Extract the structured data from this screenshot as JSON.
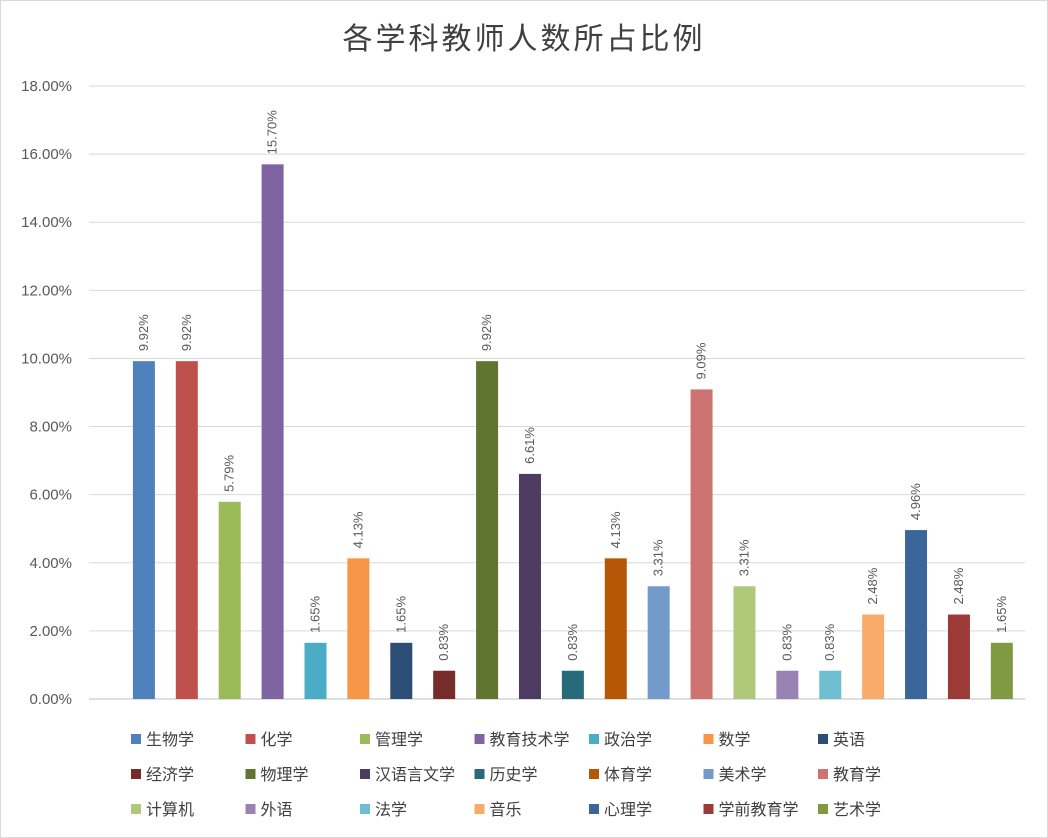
{
  "chart_data": {
    "type": "bar",
    "title": "各学科教师人数所占比例",
    "xlabel": "",
    "ylabel": "",
    "ylim": [
      0,
      18
    ],
    "y_ticks": [
      "0.00%",
      "2.00%",
      "4.00%",
      "6.00%",
      "8.00%",
      "10.00%",
      "12.00%",
      "14.00%",
      "16.00%",
      "18.00%"
    ],
    "grid": true,
    "legend_position": "bottom",
    "series": [
      {
        "name": "生物学",
        "value": 9.92,
        "label": "9.92%",
        "color": "#4f81bd"
      },
      {
        "name": "化学",
        "value": 9.92,
        "label": "9.92%",
        "color": "#c0504d"
      },
      {
        "name": "管理学",
        "value": 5.79,
        "label": "5.79%",
        "color": "#9bbb59"
      },
      {
        "name": "教育技术学",
        "value": 15.7,
        "label": "15.70%",
        "color": "#8064a2"
      },
      {
        "name": "政治学",
        "value": 1.65,
        "label": "1.65%",
        "color": "#4bacc6"
      },
      {
        "name": "数学",
        "value": 4.13,
        "label": "4.13%",
        "color": "#f79646"
      },
      {
        "name": "英语",
        "value": 1.65,
        "label": "1.65%",
        "color": "#2c4d75"
      },
      {
        "name": "经济学",
        "value": 0.83,
        "label": "0.83%",
        "color": "#772c2a"
      },
      {
        "name": "物理学",
        "value": 9.92,
        "label": "9.92%",
        "color": "#5f7530"
      },
      {
        "name": "汉语言文学",
        "value": 6.61,
        "label": "6.61%",
        "color": "#4d3b62"
      },
      {
        "name": "历史学",
        "value": 0.83,
        "label": "0.83%",
        "color": "#276a7c"
      },
      {
        "name": "体育学",
        "value": 4.13,
        "label": "4.13%",
        "color": "#b65708"
      },
      {
        "name": "美术学",
        "value": 3.31,
        "label": "3.31%",
        "color": "#729aca"
      },
      {
        "name": "教育学",
        "value": 9.09,
        "label": "9.09%",
        "color": "#cd7371"
      },
      {
        "name": "计算机",
        "value": 3.31,
        "label": "3.31%",
        "color": "#afc97a"
      },
      {
        "name": "外语",
        "value": 0.83,
        "label": "0.83%",
        "color": "#9983b5"
      },
      {
        "name": "法学",
        "value": 0.83,
        "label": "0.83%",
        "color": "#6fbdd1"
      },
      {
        "name": "音乐",
        "value": 2.48,
        "label": "2.48%",
        "color": "#f9ab6b"
      },
      {
        "name": "心理学",
        "value": 4.96,
        "label": "4.96%",
        "color": "#3a6699"
      },
      {
        "name": "学前教育学",
        "value": 2.48,
        "label": "2.48%",
        "color": "#9c3a38"
      },
      {
        "name": "艺术学",
        "value": 1.65,
        "label": "1.65%",
        "color": "#7f9a40"
      }
    ]
  }
}
